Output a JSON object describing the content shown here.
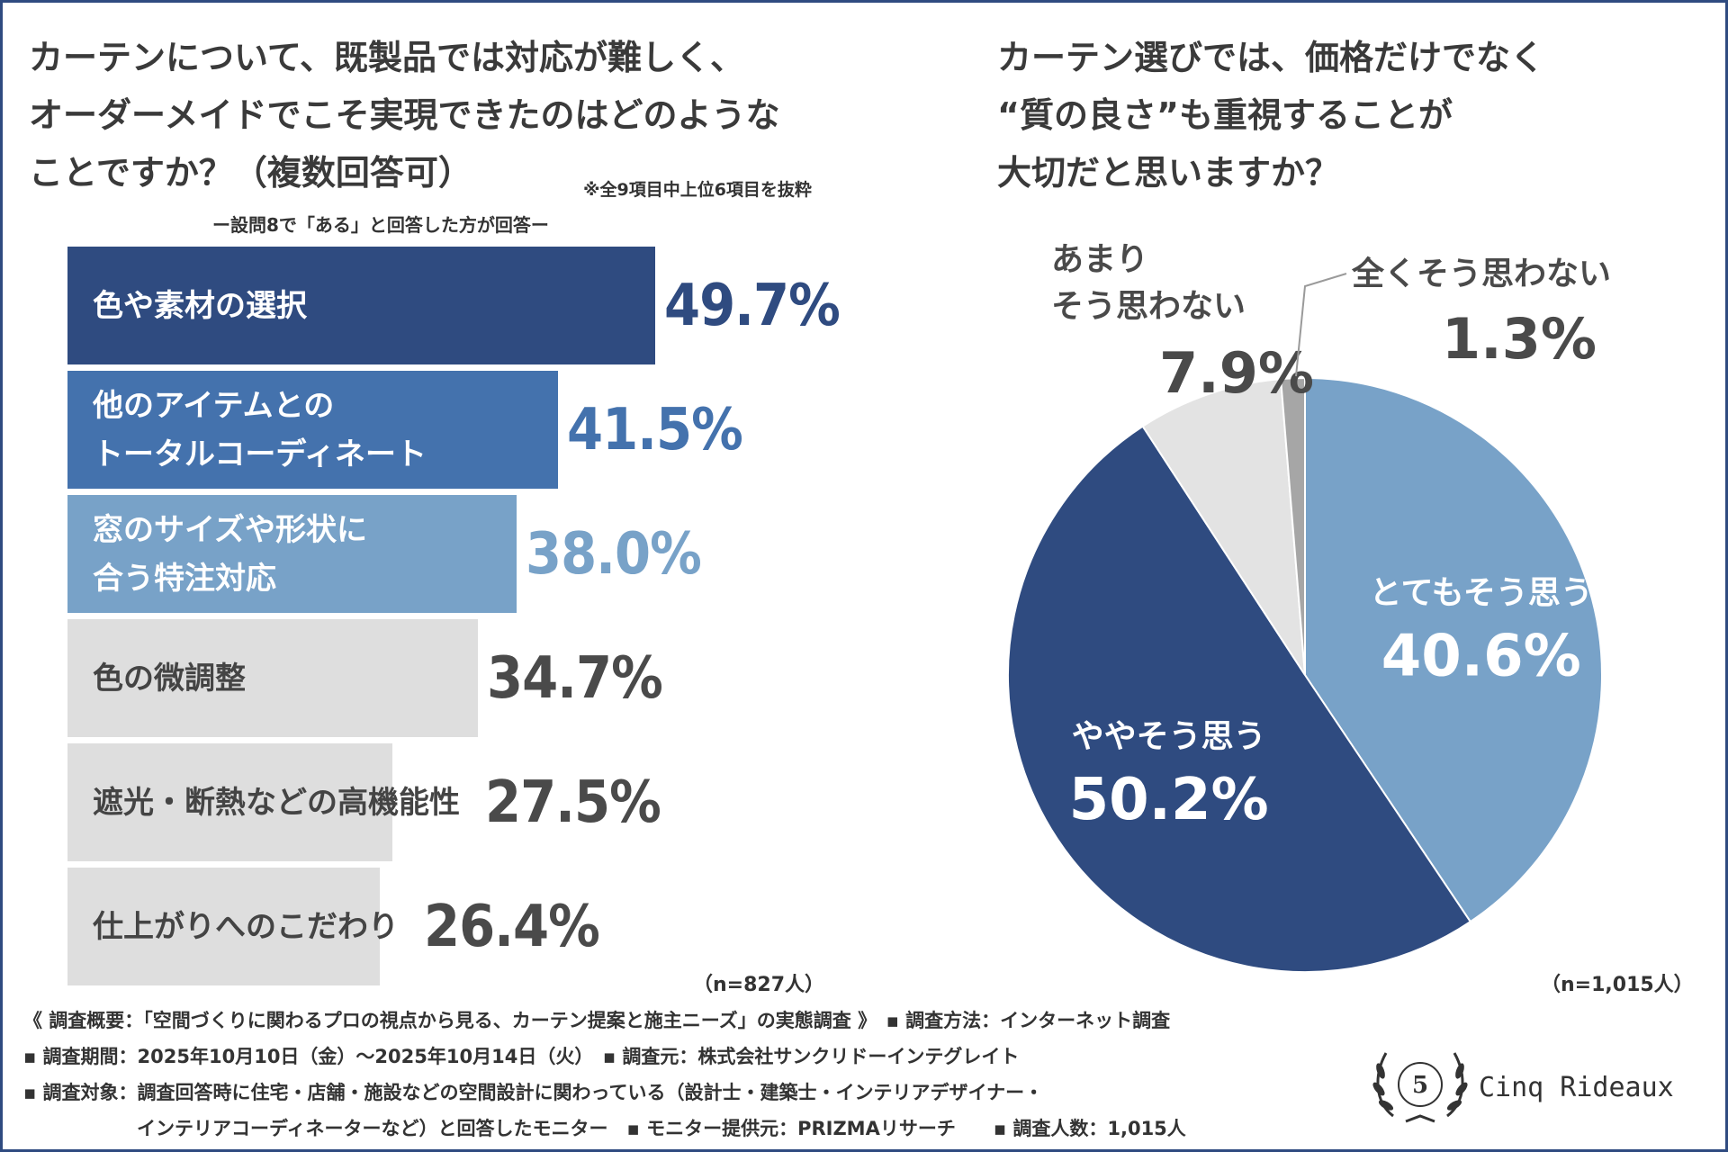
{
  "left": {
    "question_lines": [
      "カーテンについて、既製品では対応が難しく、",
      "オーダーメイドでこそ実現できたのはどのような",
      "ことですか？（複数回答可）"
    ],
    "note": "※全9項目中上位6項目を抜粋",
    "subtitle": "ー設問8で「ある」と回答した方が回答ー",
    "n_label": "（n=827人）"
  },
  "right": {
    "question_lines": [
      "カーテン選びでは、価格だけでなく",
      "“質の良さ”も重視することが",
      "大切だと思いますか？"
    ],
    "n_label": "（n=1,015人）"
  },
  "chart_data": [
    {
      "type": "bar",
      "orientation": "horizontal",
      "categories": [
        [
          "色や素材の選択"
        ],
        [
          "他のアイテムとの",
          "トータルコーディネート"
        ],
        [
          "窓のサイズや形状に",
          "合う特注対応"
        ],
        [
          "色の微調整"
        ],
        [
          "遮光・断熱などの高機能性"
        ],
        [
          "仕上がりへのこだわり"
        ]
      ],
      "values": [
        49.7,
        41.5,
        38.0,
        34.7,
        27.5,
        26.4
      ],
      "value_labels": [
        "49.7%",
        "41.5%",
        "38.0%",
        "34.7%",
        "27.5%",
        "26.4%"
      ],
      "bar_colors": [
        "#2f4b80",
        "#4472ad",
        "#78a2c8",
        "#dedede",
        "#dedede",
        "#dedede"
      ],
      "label_colors": [
        "#ffffff",
        "#ffffff",
        "#ffffff",
        "#444444",
        "#444444",
        "#444444"
      ],
      "value_colors": [
        "#2f4b80",
        "#4472ad",
        "#78a2c8",
        "#4a4a4a",
        "#4a4a4a",
        "#4a4a4a"
      ],
      "xlim": [
        0,
        50
      ]
    },
    {
      "type": "pie",
      "slices": [
        {
          "label": [
            "とてもそう思う"
          ],
          "value": 40.6,
          "value_label": "40.6%",
          "color": "#78a2c8",
          "text_color": "#ffffff"
        },
        {
          "label": [
            "ややそう思う"
          ],
          "value": 50.2,
          "value_label": "50.2%",
          "color": "#2f4b80",
          "text_color": "#ffffff"
        },
        {
          "label": [
            "あまり",
            "そう思わない"
          ],
          "value": 7.9,
          "value_label": "7.9%",
          "color": "#e3e3e3",
          "text_color": "#4a4a4a"
        },
        {
          "label": [
            "全くそう思わない"
          ],
          "value": 1.3,
          "value_label": "1.3%",
          "color": "#a6a6a6",
          "text_color": "#4a4a4a"
        }
      ]
    }
  ],
  "footer": {
    "lines": [
      "《 調査概要：「空間づくりに関わるプロの視点から見る、カーテン提案と施主ニーズ」の実態調査 》　▪ 調査方法：インターネット調査",
      "▪ 調査期間：2025年10月10日（金）～2025年10月14日（火）　▪ 調査元：株式会社サンクリドーインテグレイト",
      "▪ 調査対象：調査回答時に住宅・店舗・施設などの空間設計に関わっている（設計士・建築士・インテリアデザイナー・",
      "インテリアコーディネーターなど）と回答したモニター　▪ モニター提供元：PRIZMAリサーチ　　▪ 調査人数：1,015人"
    ]
  },
  "logo": {
    "text": "Cinq Rideaux",
    "badge_number": "5"
  },
  "colors": {
    "navy": "#2f4b80",
    "mid_blue": "#4472ad",
    "light_blue": "#78a2c8",
    "gray": "#dedede"
  }
}
